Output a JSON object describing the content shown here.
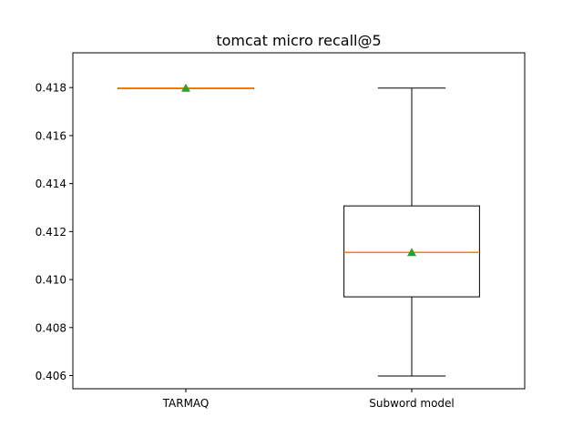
{
  "chart_data": {
    "type": "box",
    "title": "tomcat micro recall@5",
    "xlabel": "",
    "ylabel": "",
    "ylim": [
      0.40545,
      0.41945
    ],
    "yticks": [
      0.406,
      0.408,
      0.41,
      0.412,
      0.414,
      0.416,
      0.418
    ],
    "ytick_labels": [
      "0.406",
      "0.408",
      "0.410",
      "0.412",
      "0.414",
      "0.416",
      "0.418"
    ],
    "grid": false,
    "categories": [
      "TARMAQ",
      "Subword model"
    ],
    "boxes": [
      {
        "category": "TARMAQ",
        "whisker_low": 0.41798,
        "q1": 0.41798,
        "median": 0.41798,
        "q3": 0.41798,
        "whisker_high": 0.41798,
        "mean": 0.41798
      },
      {
        "category": "Subword model",
        "whisker_low": 0.40598,
        "q1": 0.40928,
        "median": 0.41113,
        "q3": 0.41307,
        "whisker_high": 0.41798,
        "mean": 0.41113
      }
    ],
    "colors": {
      "box": "#000000",
      "median": "#ff7f0e",
      "mean": "#2ca02c"
    }
  }
}
